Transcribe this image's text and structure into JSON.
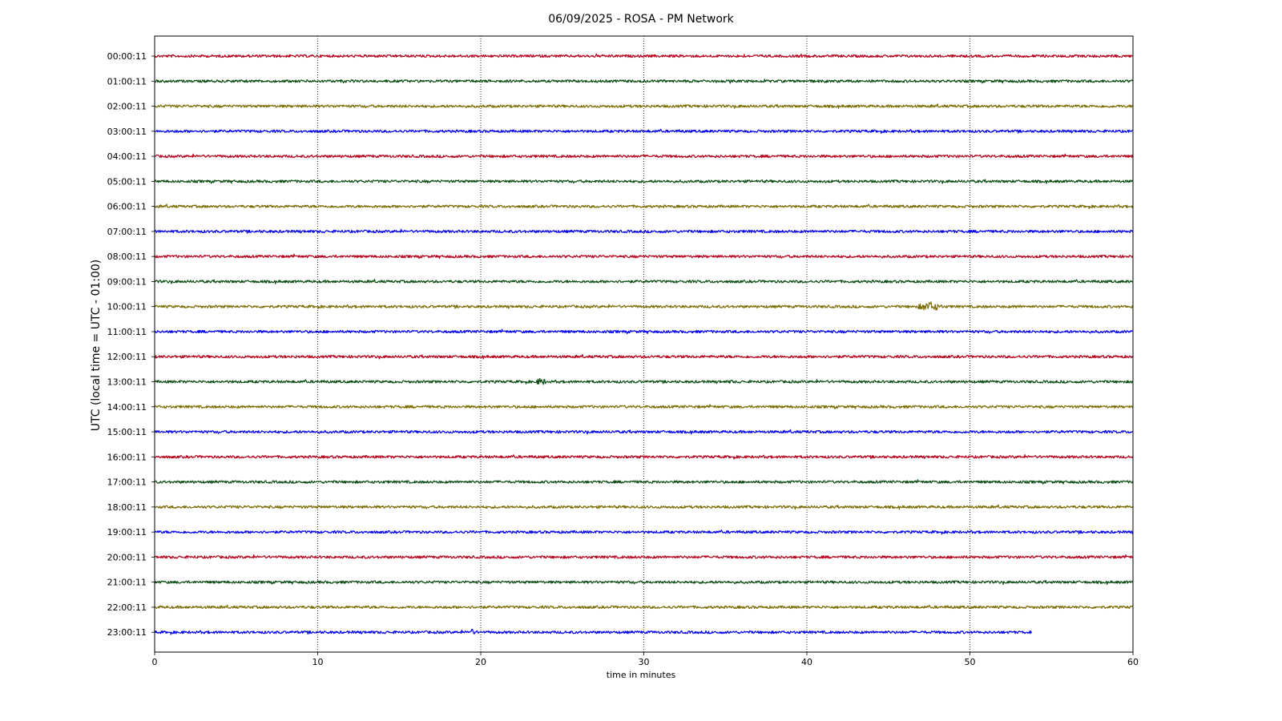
{
  "chart_data": {
    "type": "line",
    "title": "06/09/2025 - ROSA - PM Network",
    "xlabel": "time in minutes",
    "ylabel": "UTC (local time = UTC - 01:00)",
    "xlim": [
      0,
      60
    ],
    "x_ticks": [
      "0",
      "10",
      "20",
      "30",
      "40",
      "50",
      "60"
    ],
    "x_tick_values": [
      0,
      10,
      20,
      30,
      40,
      50,
      60
    ],
    "vertical_grid": "dotted at x = 10, 20, 30, 40, 50",
    "trace_colors": [
      "#b5001b",
      "#0b4d13",
      "#7a6b00",
      "#0000ee"
    ],
    "rows": [
      {
        "label": "00:00:11",
        "color": "#b5001b",
        "end_minute": 60
      },
      {
        "label": "01:00:11",
        "color": "#0b4d13",
        "end_minute": 60
      },
      {
        "label": "02:00:11",
        "color": "#7a6b00",
        "end_minute": 60
      },
      {
        "label": "03:00:11",
        "color": "#0000ee",
        "end_minute": 60
      },
      {
        "label": "04:00:11",
        "color": "#b5001b",
        "end_minute": 60
      },
      {
        "label": "05:00:11",
        "color": "#0b4d13",
        "end_minute": 60
      },
      {
        "label": "06:00:11",
        "color": "#7a6b00",
        "end_minute": 60
      },
      {
        "label": "07:00:11",
        "color": "#0000ee",
        "end_minute": 60
      },
      {
        "label": "08:00:11",
        "color": "#b5001b",
        "end_minute": 60
      },
      {
        "label": "09:00:11",
        "color": "#0b4d13",
        "end_minute": 60
      },
      {
        "label": "10:00:11",
        "color": "#7a6b00",
        "end_minute": 60
      },
      {
        "label": "11:00:11",
        "color": "#0000ee",
        "end_minute": 60
      },
      {
        "label": "12:00:11",
        "color": "#b5001b",
        "end_minute": 60
      },
      {
        "label": "13:00:11",
        "color": "#0b4d13",
        "end_minute": 60
      },
      {
        "label": "14:00:11",
        "color": "#7a6b00",
        "end_minute": 60
      },
      {
        "label": "15:00:11",
        "color": "#0000ee",
        "end_minute": 60
      },
      {
        "label": "16:00:11",
        "color": "#b5001b",
        "end_minute": 60
      },
      {
        "label": "17:00:11",
        "color": "#0b4d13",
        "end_minute": 60
      },
      {
        "label": "18:00:11",
        "color": "#7a6b00",
        "end_minute": 60
      },
      {
        "label": "19:00:11",
        "color": "#0000ee",
        "end_minute": 60
      },
      {
        "label": "20:00:11",
        "color": "#b5001b",
        "end_minute": 60
      },
      {
        "label": "21:00:11",
        "color": "#0b4d13",
        "end_minute": 60
      },
      {
        "label": "22:00:11",
        "color": "#7a6b00",
        "end_minute": 60
      },
      {
        "label": "23:00:11",
        "color": "#0000ee",
        "end_minute": 53.8
      }
    ],
    "events": [
      {
        "row": "10:00:11",
        "start_minute": 46.8,
        "end_minute": 48.3,
        "peak_amplitude": 4
      },
      {
        "row": "10:00:11",
        "start_minute": 52.4,
        "end_minute": 53.4,
        "peak_amplitude": 1.5
      },
      {
        "row": "13:00:11",
        "start_minute": 23.4,
        "end_minute": 24.0,
        "peak_amplitude": 3.5
      },
      {
        "row": "13:00:11",
        "start_minute": 35.2,
        "end_minute": 35.5,
        "peak_amplitude": 2
      },
      {
        "row": "23:00:11",
        "start_minute": 19.1,
        "end_minute": 19.8,
        "peak_amplitude": 2.5
      }
    ]
  }
}
